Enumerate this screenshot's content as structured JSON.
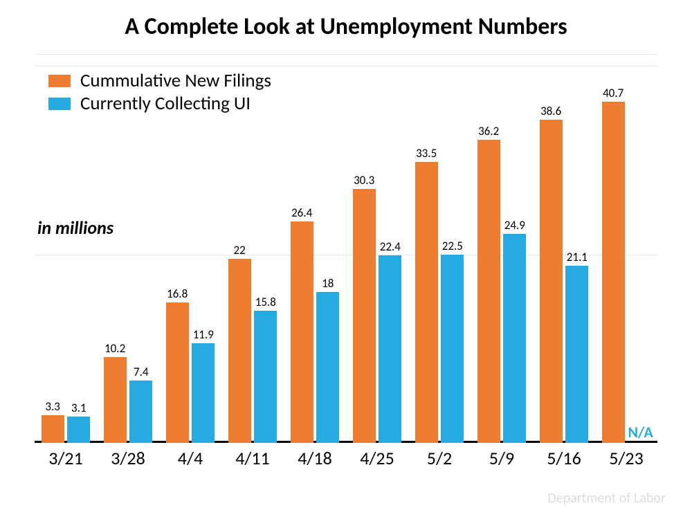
{
  "title": "A Complete Look at Unemployment Numbers",
  "title_fontsize": 34,
  "title_weight": "700",
  "source": "Department of Labor",
  "source_fontsize": 20,
  "source_color": "#dcdcdc",
  "units_label": "in millions",
  "units_fontsize": 26,
  "units_top_pct": 40,
  "background_color": "#ffffff",
  "grid_color": "#e6e6e6",
  "chart": {
    "type": "bar",
    "ymin": 0,
    "ymax": 45,
    "baseline_width": 3,
    "baseline_color": "#000000",
    "gridlines_y": [
      45,
      22.5
    ],
    "bar_label_fontsize": 17,
    "xlabel_fontsize": 26,
    "group_width_pct": 9.1,
    "gap_pct": 0.9,
    "bar_rel_width": 0.4,
    "bar_rel_gap": 0.06,
    "categories": [
      "3/21",
      "3/28",
      "4/4",
      "4/11",
      "4/18",
      "4/25",
      "5/2",
      "5/9",
      "5/16",
      "5/23"
    ],
    "series": [
      {
        "name": "Cummulative New Filings",
        "color": "#ed7d31",
        "values": [
          3.3,
          10.2,
          16.8,
          22,
          26.4,
          30.3,
          33.5,
          36.2,
          38.6,
          40.7
        ],
        "value_labels": [
          "3.3",
          "10.2",
          "16.8",
          "22",
          "26.4",
          "30.3",
          "33.5",
          "36.2",
          "38.6",
          "40.7"
        ]
      },
      {
        "name": "Currently Collecting UI",
        "color": "#27aae1",
        "values": [
          3.1,
          7.4,
          11.9,
          15.8,
          18,
          22.4,
          22.5,
          24.9,
          21.1,
          null
        ],
        "value_labels": [
          "3.1",
          "7.4",
          "11.9",
          "15.8",
          "18",
          "22.4",
          "22.5",
          "24.9",
          "21.1",
          ""
        ],
        "na_label": "N/A",
        "na_color": "#27aae1",
        "na_fontsize": 22
      }
    ],
    "legend": {
      "swatch_w": 32,
      "swatch_h": 18,
      "fontsize": 27
    }
  }
}
